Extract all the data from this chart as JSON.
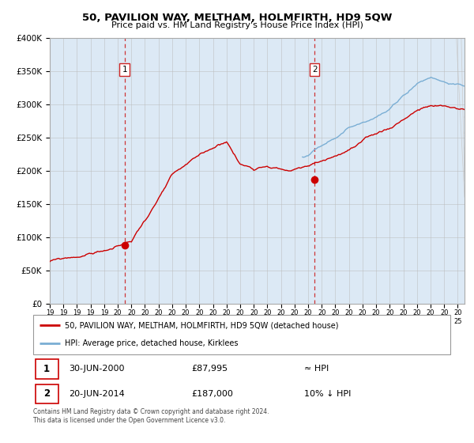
{
  "title": "50, PAVILION WAY, MELTHAM, HOLMFIRTH, HD9 5QW",
  "subtitle": "Price paid vs. HM Land Registry's House Price Index (HPI)",
  "legend_line1": "50, PAVILION WAY, MELTHAM, HOLMFIRTH, HD9 5QW (detached house)",
  "legend_line2": "HPI: Average price, detached house, Kirklees",
  "table_row1": [
    "1",
    "30-JUN-2000",
    "£87,995",
    "≈ HPI"
  ],
  "table_row2": [
    "2",
    "20-JUN-2014",
    "£187,000",
    "10% ↓ HPI"
  ],
  "footnote": "Contains HM Land Registry data © Crown copyright and database right 2024.\nThis data is licensed under the Open Government Licence v3.0.",
  "sale1_date": 2000.5,
  "sale1_price": 87995,
  "sale2_date": 2014.47,
  "sale2_price": 187000,
  "hpi_color": "#7aaed4",
  "price_color": "#cc0000",
  "bg_color": "#dce9f5",
  "grid_color": "#bbbbbb",
  "ylim": [
    0,
    400000
  ],
  "xlim_start": 1995.0,
  "xlim_end": 2025.5,
  "price_seed": 99,
  "hpi_seed": 77
}
